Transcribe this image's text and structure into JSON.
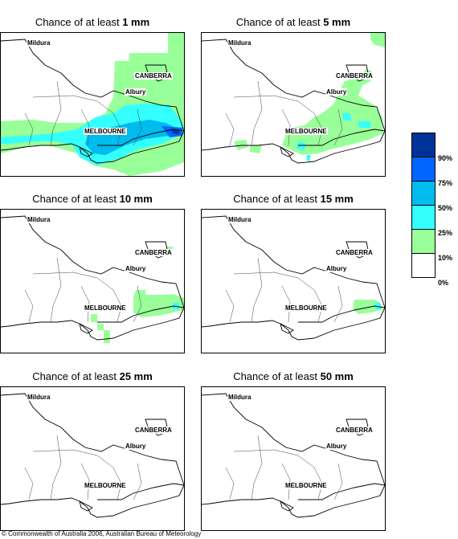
{
  "panels": [
    {
      "title_prefix": "Chance of at least ",
      "threshold": "1 mm"
    },
    {
      "title_prefix": "Chance of at least ",
      "threshold": "5 mm"
    },
    {
      "title_prefix": "Chance of at least ",
      "threshold": "10 mm"
    },
    {
      "title_prefix": "Chance of at least ",
      "threshold": "15 mm"
    },
    {
      "title_prefix": "Chance of at least ",
      "threshold": "25 mm"
    },
    {
      "title_prefix": "Chance of at least ",
      "threshold": "50 mm"
    }
  ],
  "cities": {
    "mildura": "Mildura",
    "canberra": "CANBERRA",
    "albury": "Albury",
    "melbourne": "MELBOURNE"
  },
  "legend": {
    "labels": [
      "90%",
      "75%",
      "50%",
      "25%",
      "10%",
      "0%"
    ],
    "colors": [
      "#00339a",
      "#0066ff",
      "#00bbee",
      "#33ffff",
      "#99ff99",
      "#ffffff"
    ]
  },
  "copyright": "© Commonwealth of Australia 2006, Australian Bureau of Meteorology"
}
